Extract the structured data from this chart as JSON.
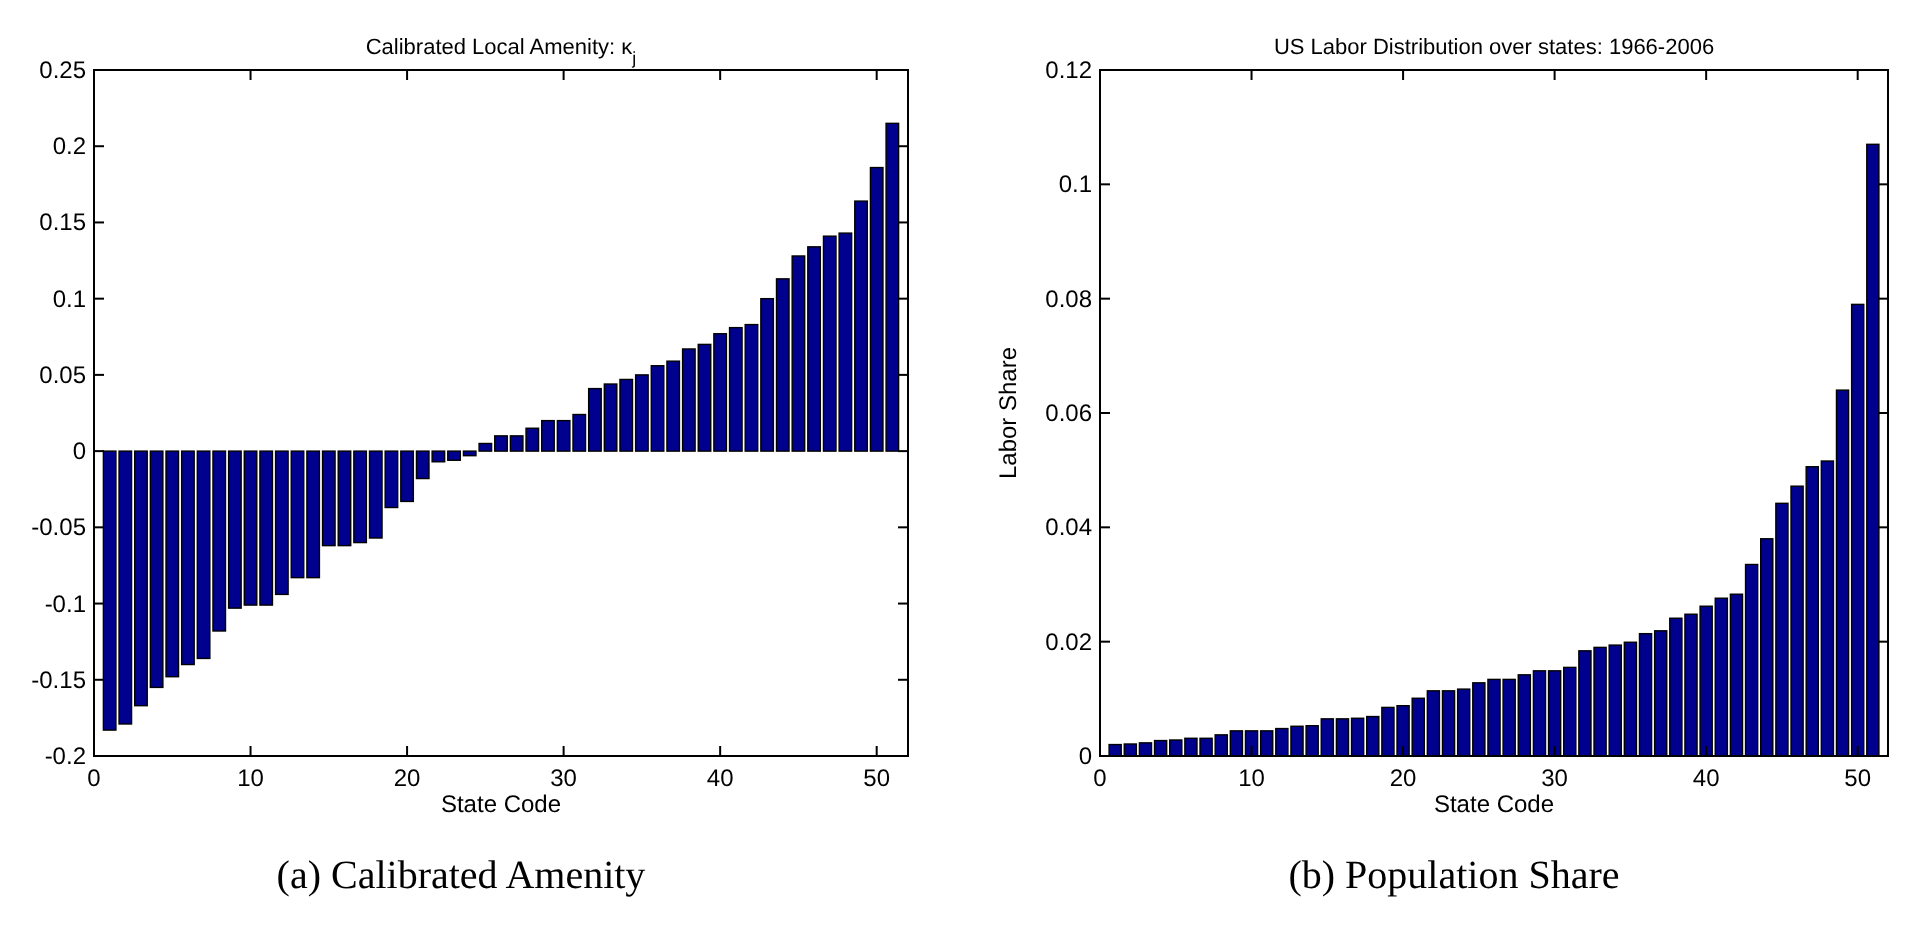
{
  "chart_data": [
    {
      "type": "bar",
      "title": "Calibrated Local Amenity: κ$_{j}$",
      "xlabel": "State Code",
      "annotations": [
        "(a) Calibrated Amenity"
      ],
      "x": [
        1,
        2,
        3,
        4,
        5,
        6,
        7,
        8,
        9,
        10,
        11,
        12,
        13,
        14,
        15,
        16,
        17,
        18,
        19,
        20,
        21,
        22,
        23,
        24,
        25,
        26,
        27,
        28,
        29,
        30,
        31,
        32,
        33,
        34,
        35,
        36,
        37,
        38,
        39,
        40,
        41,
        42,
        43,
        44,
        45,
        46,
        47,
        48,
        49,
        50,
        51
      ],
      "series": [
        {
          "color": "#00008f",
          "values": [
            -0.183,
            -0.179,
            -0.167,
            -0.155,
            -0.148,
            -0.14,
            -0.136,
            -0.118,
            -0.103,
            -0.101,
            -0.101,
            -0.094,
            -0.083,
            -0.083,
            -0.062,
            -0.062,
            -0.06,
            -0.057,
            -0.037,
            -0.033,
            -0.018,
            -0.007,
            -0.006,
            -0.003,
            0.005,
            0.01,
            0.01,
            0.015,
            0.02,
            0.02,
            0.024,
            0.041,
            0.044,
            0.047,
            0.05,
            0.056,
            0.059,
            0.067,
            0.07,
            0.077,
            0.081,
            0.083,
            0.1,
            0.113,
            0.128,
            0.134,
            0.141,
            0.143,
            0.164,
            0.186,
            0.215
          ]
        }
      ],
      "xlim": [
        0,
        52
      ],
      "xticks": [
        0,
        10,
        20,
        30,
        40,
        50
      ],
      "ylim": [
        -0.2,
        0.25
      ],
      "yticks": [
        -0.2,
        -0.15,
        -0.1,
        -0.05,
        0,
        0.05,
        0.1,
        0.15,
        0.2,
        0.25
      ]
    },
    {
      "type": "bar",
      "title": "US Labor Distribution over states: 1966-2006",
      "xlabel": "State Code",
      "ylabel": "Labor Share",
      "annotations": [
        "(b) Population Share"
      ],
      "x": [
        1,
        2,
        3,
        4,
        5,
        6,
        7,
        8,
        9,
        10,
        11,
        12,
        13,
        14,
        15,
        16,
        17,
        18,
        19,
        20,
        21,
        22,
        23,
        24,
        25,
        26,
        27,
        28,
        29,
        30,
        31,
        32,
        33,
        34,
        35,
        36,
        37,
        38,
        39,
        40,
        41,
        42,
        43,
        44,
        45,
        46,
        47,
        48,
        49,
        50,
        51
      ],
      "series": [
        {
          "color": "#00008f",
          "values": [
            0.002,
            0.0021,
            0.0023,
            0.0027,
            0.0028,
            0.0031,
            0.0031,
            0.0037,
            0.0044,
            0.0044,
            0.0044,
            0.0048,
            0.0052,
            0.0053,
            0.0065,
            0.0065,
            0.0066,
            0.0069,
            0.0085,
            0.0088,
            0.0101,
            0.0114,
            0.0114,
            0.0117,
            0.0128,
            0.0134,
            0.0134,
            0.0142,
            0.0149,
            0.0149,
            0.0155,
            0.0184,
            0.019,
            0.0194,
            0.0199,
            0.0214,
            0.0219,
            0.0241,
            0.0248,
            0.0262,
            0.0276,
            0.0283,
            0.0335,
            0.038,
            0.0442,
            0.0472,
            0.0506,
            0.0516,
            0.064,
            0.079,
            0.107
          ]
        }
      ],
      "xlim": [
        0,
        52
      ],
      "xticks": [
        0,
        10,
        20,
        30,
        40,
        50
      ],
      "ylim": [
        0,
        0.12
      ],
      "yticks": [
        0,
        0.02,
        0.04,
        0.06,
        0.08,
        0.1,
        0.12
      ]
    }
  ]
}
